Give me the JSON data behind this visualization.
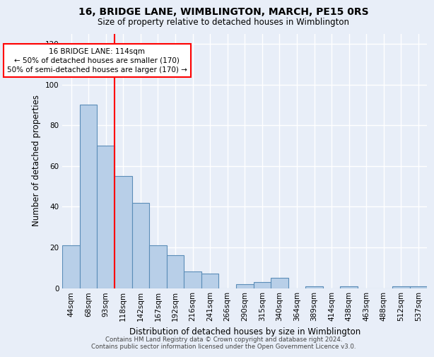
{
  "title": "16, BRIDGE LANE, WIMBLINGTON, MARCH, PE15 0RS",
  "subtitle": "Size of property relative to detached houses in Wimblington",
  "xlabel": "Distribution of detached houses by size in Wimblington",
  "ylabel": "Number of detached properties",
  "categories": [
    "44sqm",
    "68sqm",
    "93sqm",
    "118sqm",
    "142sqm",
    "167sqm",
    "192sqm",
    "216sqm",
    "241sqm",
    "266sqm",
    "290sqm",
    "315sqm",
    "340sqm",
    "364sqm",
    "389sqm",
    "414sqm",
    "438sqm",
    "463sqm",
    "488sqm",
    "512sqm",
    "537sqm"
  ],
  "values": [
    21,
    90,
    70,
    55,
    42,
    21,
    16,
    8,
    7,
    0,
    2,
    3,
    5,
    0,
    1,
    0,
    1,
    0,
    0,
    1,
    1
  ],
  "bar_color": "#b8cfe8",
  "bar_edge_color": "#5b8db8",
  "red_line_color": "red",
  "ylim": [
    0,
    125
  ],
  "yticks": [
    0,
    20,
    40,
    60,
    80,
    100,
    120
  ],
  "background_color": "#e8eef8",
  "grid_color": "white",
  "annotation_line1": "16 BRIDGE LANE: 114sqm",
  "annotation_line2": "← 50% of detached houses are smaller (170)",
  "annotation_line3": "50% of semi-detached houses are larger (170) →",
  "footer": "Contains HM Land Registry data © Crown copyright and database right 2024.\nContains public sector information licensed under the Open Government Licence v3.0.",
  "red_line_index": 3
}
